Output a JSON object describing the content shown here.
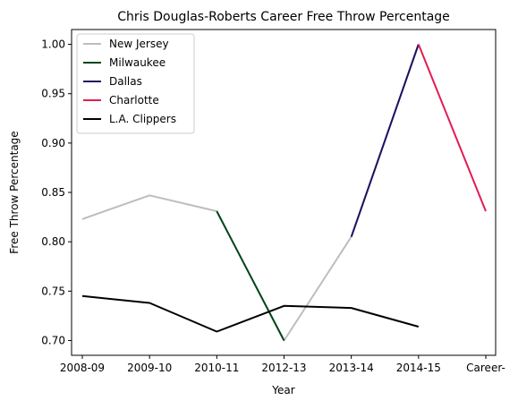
{
  "chart_data": {
    "type": "line",
    "title": "Chris Douglas-Roberts Career Free Throw Percentage",
    "xlabel": "Year",
    "ylabel": "Free Throw Percentage",
    "categories": [
      "2008-09",
      "2009-10",
      "2010-11",
      "2012-13",
      "2013-14",
      "2014-15",
      "Career-"
    ],
    "ylim": [
      0.685,
      1.015
    ],
    "yticks": [
      "0.70",
      "0.75",
      "0.80",
      "0.85",
      "0.90",
      "0.95",
      "1.00"
    ],
    "grid": false,
    "legend_position": "upper-left",
    "series": [
      {
        "name": "New Jersey",
        "color": "#bdbdbd",
        "points": [
          {
            "x": "2008-09",
            "y": 0.823
          },
          {
            "x": "2009-10",
            "y": 0.847
          },
          {
            "x": "2010-11",
            "y": 0.831
          },
          {
            "x": "2012-13",
            "y": 0.7
          },
          {
            "x": "2013-14",
            "y": 0.805
          },
          {
            "x": "2014-15",
            "y": 1.0
          }
        ]
      },
      {
        "name": "Milwaukee",
        "color": "#00471b",
        "points": [
          {
            "x": "2010-11",
            "y": 0.831
          },
          {
            "x": "2012-13",
            "y": 0.7
          }
        ]
      },
      {
        "name": "Dallas",
        "color": "#1d1160",
        "points": [
          {
            "x": "2013-14",
            "y": 0.805
          },
          {
            "x": "2014-15",
            "y": 1.0
          }
        ]
      },
      {
        "name": "Charlotte",
        "color": "#e31b54",
        "points": [
          {
            "x": "2014-15",
            "y": 1.0
          },
          {
            "x": "Career-",
            "y": 0.831
          }
        ]
      },
      {
        "name": "L.A. Clippers",
        "color": "#000000",
        "points": [
          {
            "x": "2008-09",
            "y": 0.745
          },
          {
            "x": "2009-10",
            "y": 0.738
          },
          {
            "x": "2010-11",
            "y": 0.709
          },
          {
            "x": "2012-13",
            "y": 0.735
          },
          {
            "x": "2013-14",
            "y": 0.733
          },
          {
            "x": "2014-15",
            "y": 0.714
          }
        ]
      }
    ]
  }
}
